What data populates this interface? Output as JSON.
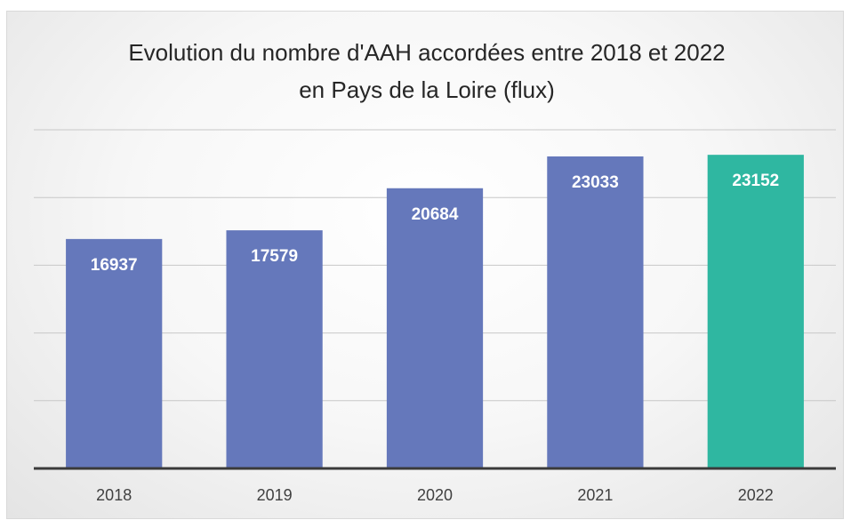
{
  "chart_data": {
    "type": "bar",
    "title": "Evolution du nombre d'AAH accordées entre 2018 et 2022 en Pays de la Loire (flux)",
    "categories": [
      "2018",
      "2019",
      "2020",
      "2021",
      "2022"
    ],
    "values": [
      16937,
      17579,
      20684,
      23033,
      23152
    ],
    "colors": [
      "#6578bb",
      "#6578bb",
      "#6578bb",
      "#6578bb",
      "#2fb7a1"
    ],
    "ylim": [
      0,
      25000
    ],
    "yticks": [
      0,
      5000,
      10000,
      15000,
      20000,
      25000
    ],
    "grid": true
  }
}
